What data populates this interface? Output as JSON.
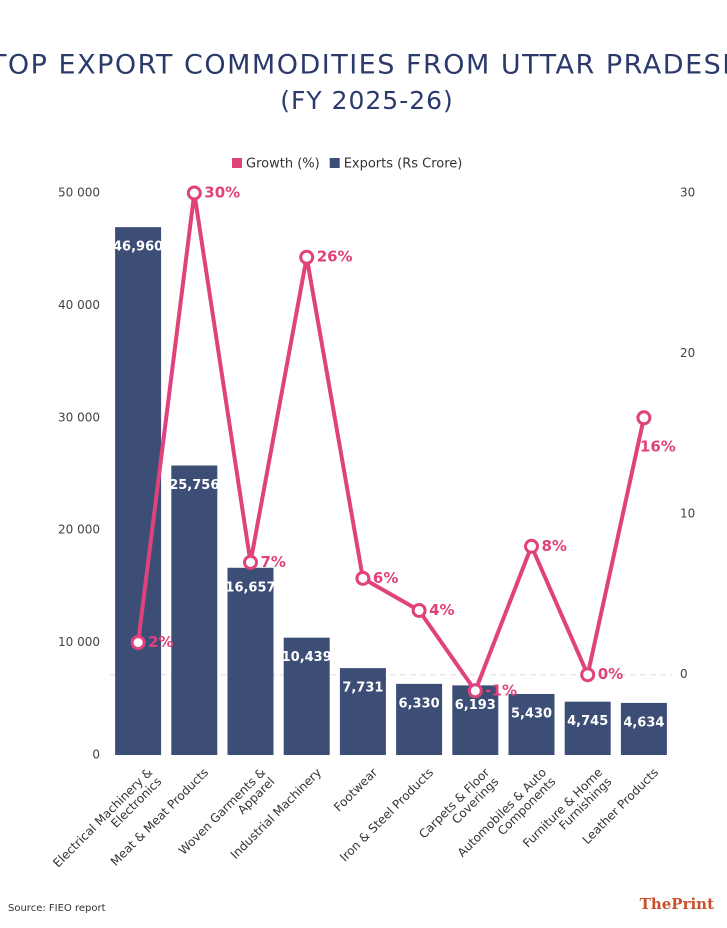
{
  "chart_data": {
    "type": "bar_line",
    "title": "TOP EXPORT COMMODITIES FROM UTTAR PRADESH",
    "subtitle": "(FY 2025-26)",
    "categories": [
      "Electrical Machinery & Electronics",
      "Meat & Meat Products",
      "Woven Garments & Apparel",
      "Industrial Machinery",
      "Footwear",
      "Iron & Steel Products",
      "Carpets & Floor Coverings",
      "Automobiles & Auto Components",
      "Furniture & Home Furnishings",
      "Leather Products"
    ],
    "series": [
      {
        "name": "Growth (%)",
        "color": "#e0427c",
        "axis": "y2",
        "type": "line",
        "values": [
          2,
          30,
          7,
          26,
          6,
          4,
          -1,
          8,
          0,
          16
        ],
        "value_labels": [
          "2%",
          "30%",
          "7%",
          "26%",
          "6%",
          "4%",
          "-1%",
          "8%",
          "0%",
          "16%"
        ]
      },
      {
        "name": "Exports (Rs Crore)",
        "color": "#3d4e76",
        "type": "bar",
        "values": [
          46960,
          25756,
          16657,
          10439,
          7731,
          6330,
          6193,
          5430,
          4745,
          4634
        ],
        "value_labels": [
          "46,960",
          "25,756",
          "16,657",
          "10,439",
          "7,731",
          "6,330",
          "6,193",
          "5,430",
          "4,745",
          "4,634"
        ]
      }
    ],
    "ylim": [
      0,
      50000
    ],
    "yticks": [
      0,
      {
        "value": 10000,
        "label": "10 000"
      },
      {
        "value": 20000,
        "label": "20 000"
      },
      {
        "value": 30000,
        "label": "30 000"
      },
      {
        "value": 40000,
        "label": "40 000"
      },
      {
        "value": 50000,
        "label": "50 000"
      }
    ],
    "y2lim": [
      -5,
      30
    ],
    "y2ticks": [
      0,
      10,
      20,
      30
    ],
    "source": "Source: FIEO report",
    "logo": "ThePrint"
  }
}
